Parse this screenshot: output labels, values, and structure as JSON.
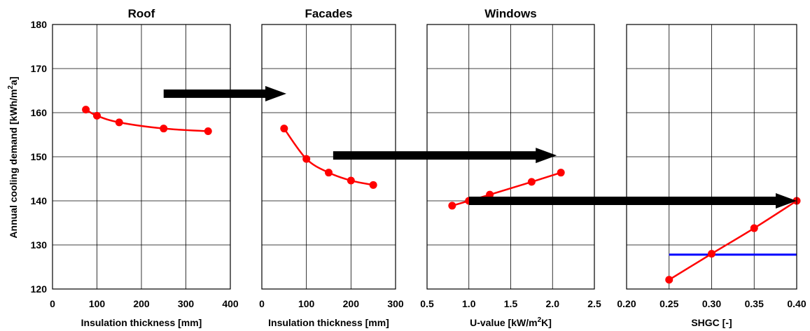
{
  "chart_data": {
    "type": "line",
    "y_axis": {
      "label": "Annual cooling demand [kWh/m2a]",
      "label_base": "Annual cooling demand [kWh/m",
      "label_sup": "2",
      "label_end": "a]",
      "range": [
        120,
        180
      ],
      "ticks": [
        120,
        130,
        140,
        150,
        160,
        170,
        180
      ]
    },
    "colors": {
      "series": "#ff0000",
      "reference_line": "#0000ff",
      "arrow": "#000000",
      "grid": "#000000"
    },
    "grid": true,
    "panels": [
      {
        "title": "Roof",
        "xlabel": "Insulation thickness [mm]",
        "xlabel_base": "Insulation thickness [mm]",
        "xlabel_sup": "",
        "xlabel_end": "",
        "xlim": [
          0,
          400
        ],
        "xticks": [
          0,
          100,
          200,
          300,
          400
        ],
        "xtick_labels": [
          "0",
          "100",
          "200",
          "300",
          "400"
        ],
        "series": [
          {
            "x": [
              75,
              100,
              150,
              250,
              350
            ],
            "y": [
              160.7,
              159.3,
              157.8,
              156.4,
              155.8
            ]
          }
        ]
      },
      {
        "title": "Facades",
        "xlabel": "Insulation thickness [mm]",
        "xlabel_base": "Insulation thickness [mm]",
        "xlabel_sup": "",
        "xlabel_end": "",
        "xlim": [
          0,
          300
        ],
        "xticks": [
          0,
          100,
          200,
          300
        ],
        "xtick_labels": [
          "0",
          "100",
          "200",
          "300"
        ],
        "series": [
          {
            "x": [
              50,
              100,
              150,
              200,
              250
            ],
            "y": [
              156.4,
              149.5,
              146.4,
              144.6,
              143.6
            ]
          }
        ]
      },
      {
        "title": "Windows",
        "xlabel": "U-value [kW/m2K]",
        "xlabel_base": "U-value [kW/m",
        "xlabel_sup": "2",
        "xlabel_end": "K]",
        "xlim": [
          0.5,
          2.5
        ],
        "xticks": [
          0.5,
          1.0,
          1.5,
          2.0,
          2.5
        ],
        "xtick_labels": [
          "0.5",
          "1.0",
          "1.5",
          "2.0",
          "2.5"
        ],
        "series": [
          {
            "x": [
              0.8,
              1.0,
              1.25,
              1.75,
              2.1
            ],
            "y": [
              138.9,
              140.0,
              141.4,
              144.3,
              146.4
            ]
          }
        ]
      },
      {
        "title": "",
        "xlabel": "SHGC [-]",
        "xlabel_base": "SHGC [-]",
        "xlabel_sup": "",
        "xlabel_end": "",
        "xlim": [
          0.2,
          0.4
        ],
        "xticks": [
          0.2,
          0.25,
          0.3,
          0.35,
          0.4
        ],
        "xtick_labels": [
          "0.20",
          "0.25",
          "0.30",
          "0.35",
          "0.40"
        ],
        "series": [
          {
            "x": [
              0.25,
              0.3,
              0.35,
              0.4
            ],
            "y": [
              122.1,
              128.0,
              133.8,
              140.0
            ]
          }
        ],
        "reference_line": {
          "x": [
            0.25,
            0.4
          ],
          "y": 127.8
        }
      }
    ],
    "arrows": [
      {
        "from_panel": 0,
        "from_x": 250,
        "to_panel": 1,
        "to_x": 55,
        "y": 164.3
      },
      {
        "from_panel": 1,
        "from_x": 160,
        "to_panel": 2,
        "to_x": 2.05,
        "y": 150.3
      },
      {
        "from_panel": 2,
        "from_x": 1.0,
        "to_panel": 3,
        "to_x": 0.4,
        "y": 140.0
      }
    ]
  }
}
